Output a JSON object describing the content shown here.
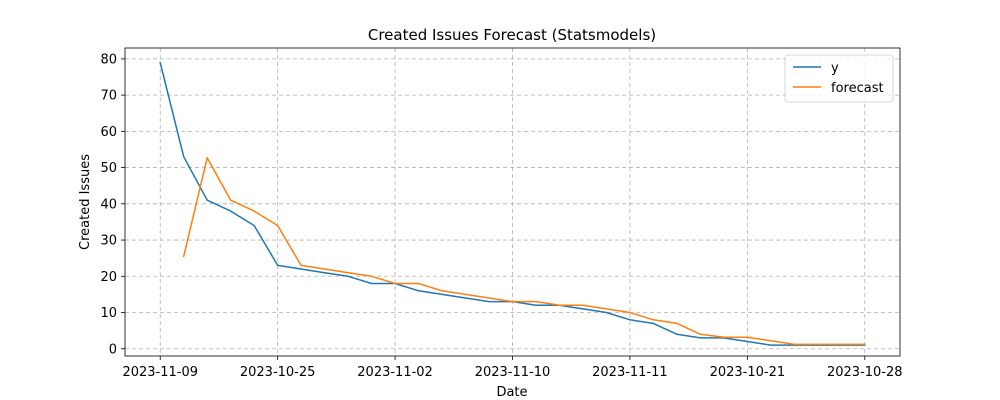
{
  "chart_data": {
    "type": "line",
    "title": "Created Issues Forecast (Statsmodels)",
    "xlabel": "Date",
    "ylabel": "Created Issues",
    "ylim": [
      -2,
      83
    ],
    "yticks": [
      0,
      10,
      20,
      30,
      40,
      50,
      60,
      70,
      80
    ],
    "x_tick_labels": [
      "2023-11-09",
      "2023-10-25",
      "2023-11-02",
      "2023-11-10",
      "2023-11-11",
      "2023-10-21",
      "2023-10-28"
    ],
    "x_tick_indices": [
      0,
      5,
      10,
      15,
      20,
      25,
      30
    ],
    "x_range": [
      -1.5,
      31.5
    ],
    "grid": true,
    "legend_position": "top-right",
    "series": [
      {
        "name": "y",
        "color": "#1f77b4",
        "values": [
          79,
          53,
          41,
          38,
          34,
          23,
          22,
          21,
          20,
          18,
          18,
          16,
          15,
          14,
          13,
          13,
          12,
          12,
          11,
          10,
          8,
          7,
          4,
          3,
          3,
          2,
          1,
          1,
          1,
          1,
          1
        ]
      },
      {
        "name": "forecast",
        "color": "#ff7f0e",
        "values": [
          null,
          25.5,
          52.7,
          41,
          38,
          34,
          23,
          22,
          21,
          20,
          18,
          18,
          16,
          15,
          14,
          13,
          13,
          12,
          12,
          11,
          10,
          8,
          7,
          4,
          3.2,
          3.2,
          2.2,
          1.2,
          1.2,
          1.2,
          1.2
        ]
      }
    ]
  }
}
